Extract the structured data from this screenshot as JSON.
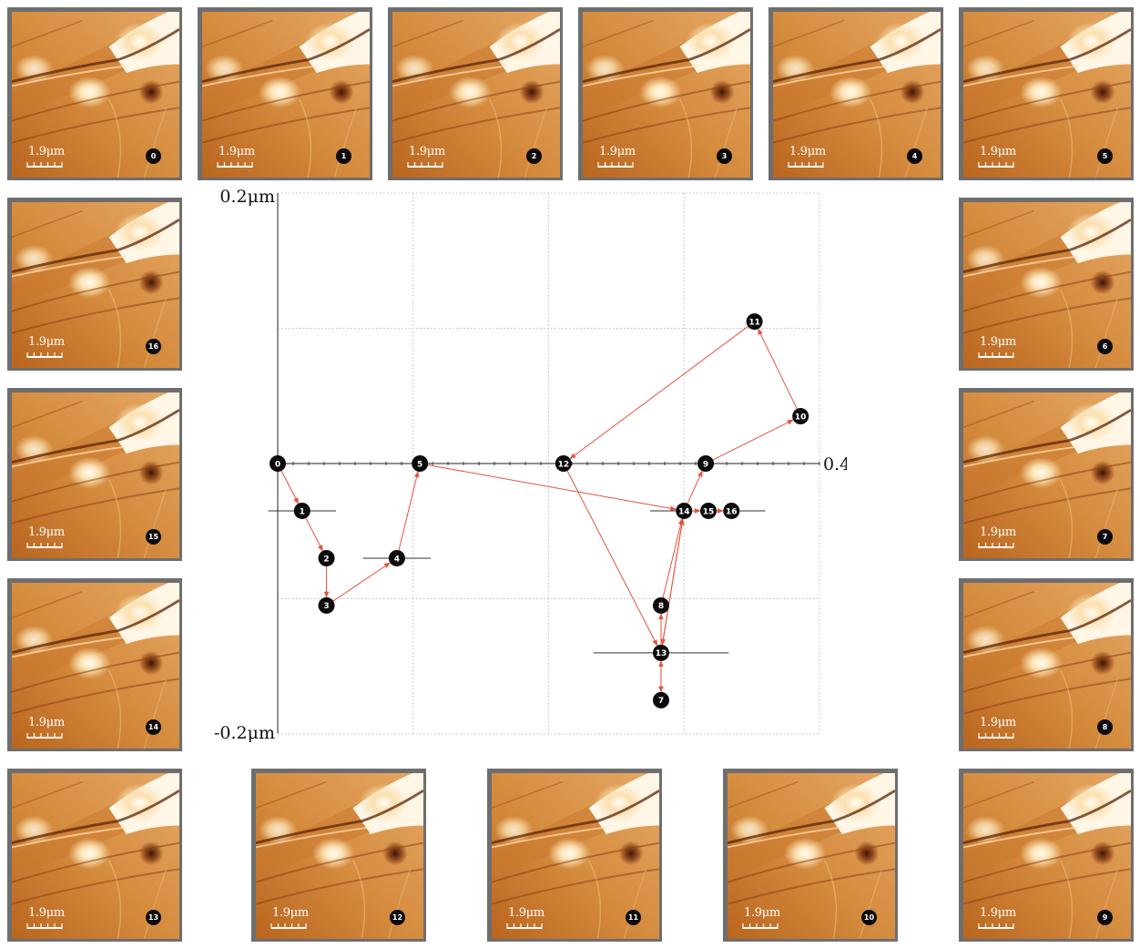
{
  "scale_bar": "1.9μm",
  "axis_labels": {
    "y_top": "0.2μm",
    "y_bottom": "-0.2μm",
    "x_right": "0.4μm"
  },
  "colors": {
    "arrow": "#e5533a",
    "marker": "#0b0b0b",
    "grid": "#bbbbbb",
    "frame": "#6e6e6e"
  },
  "frames": [
    {
      "index": "0"
    },
    {
      "index": "1"
    },
    {
      "index": "2"
    },
    {
      "index": "3"
    },
    {
      "index": "4"
    },
    {
      "index": "5"
    },
    {
      "index": "6"
    },
    {
      "index": "7"
    },
    {
      "index": "8"
    },
    {
      "index": "9"
    },
    {
      "index": "10"
    },
    {
      "index": "11"
    },
    {
      "index": "12"
    },
    {
      "index": "13"
    },
    {
      "index": "14"
    },
    {
      "index": "15"
    },
    {
      "index": "16"
    }
  ],
  "chart_data": {
    "type": "scatter",
    "xlim": [
      0,
      0.4
    ],
    "ylim": [
      -0.2,
      0.2
    ],
    "grid": true,
    "units": "μm",
    "points": [
      {
        "label": "0",
        "x": 0.0,
        "y": 0.0
      },
      {
        "label": "1",
        "x": 0.018,
        "y": -0.035,
        "xerr": 0.025
      },
      {
        "label": "2",
        "x": 0.036,
        "y": -0.07
      },
      {
        "label": "3",
        "x": 0.036,
        "y": -0.105
      },
      {
        "label": "4",
        "x": 0.088,
        "y": -0.07,
        "xerr": 0.025
      },
      {
        "label": "5",
        "x": 0.105,
        "y": 0.0
      },
      {
        "label": "7",
        "x": 0.283,
        "y": -0.175
      },
      {
        "label": "8",
        "x": 0.283,
        "y": -0.105
      },
      {
        "label": "9",
        "x": 0.316,
        "y": 0.0
      },
      {
        "label": "10",
        "x": 0.386,
        "y": 0.035
      },
      {
        "label": "11",
        "x": 0.352,
        "y": 0.105
      },
      {
        "label": "12",
        "x": 0.211,
        "y": 0.0
      },
      {
        "label": "13",
        "x": 0.283,
        "y": -0.14,
        "xerr": 0.05
      },
      {
        "label": "14",
        "x": 0.3,
        "y": -0.035,
        "xerr": 0.025
      },
      {
        "label": "15",
        "x": 0.318,
        "y": -0.035
      },
      {
        "label": "16",
        "x": 0.335,
        "y": -0.035,
        "xerr": 0.025
      }
    ],
    "path": [
      "0",
      "1",
      "2",
      "3",
      "4",
      "5",
      "14",
      "13",
      "7",
      "13",
      "8",
      "14",
      "9",
      "10",
      "11",
      "12",
      "13",
      "14",
      "15",
      "16"
    ]
  }
}
